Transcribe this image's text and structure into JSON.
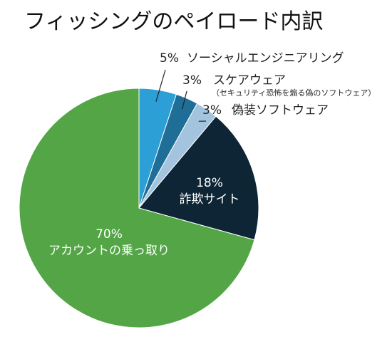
{
  "chart_data": {
    "type": "pie",
    "title": "フィッシングのペイロード内訳",
    "start": "12 o'clock",
    "direction": "clockwise",
    "slices": [
      {
        "label": "ソーシャルエンジニアリング",
        "note": "",
        "value": 5,
        "pct_text": "5%",
        "color": "#2b9fd6",
        "label_position": "outside"
      },
      {
        "label": "スケアウェア",
        "note": "（セキュリティ恐怖を煽る偽のソフトウェア）",
        "value": 3,
        "pct_text": "3%",
        "color": "#1f6e98",
        "label_position": "outside"
      },
      {
        "label": "偽装ソフトウェア",
        "note": "",
        "value": 3,
        "pct_text": "3%",
        "color": "#a3c4de",
        "label_position": "outside"
      },
      {
        "label": "詐欺サイト",
        "note": "",
        "value": 18,
        "pct_text": "18%",
        "color": "#0d2535",
        "label_position": "inside"
      },
      {
        "label": "アカウントの乗っ取り",
        "note": "",
        "value": 70,
        "pct_text": "70%",
        "color": "#53a546",
        "label_position": "inside"
      }
    ]
  }
}
